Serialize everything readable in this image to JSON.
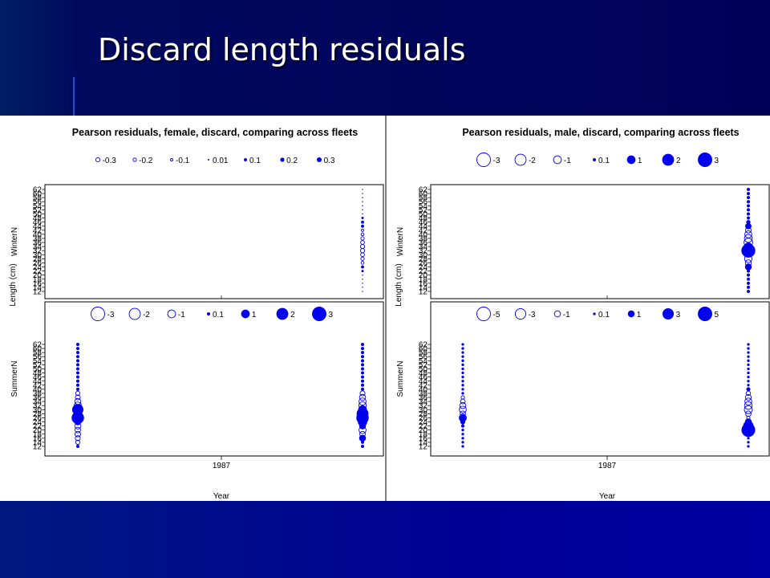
{
  "slide": {
    "title": "Discard length residuals"
  },
  "colors": {
    "bubble": "#0000ee",
    "axis": "#000000",
    "slide_bg": "#00007a"
  },
  "figure": {
    "xlabel": "Year",
    "ylabel": "Length (cm)",
    "xtick": "1987"
  },
  "chart_data": [
    {
      "type": "scatter",
      "title": "Pearson residuals, female, discard, comparing across fleets",
      "panel": "WinterN",
      "xlabel": "Year",
      "ylabel": "Length (cm)",
      "y_ticks": [
        12,
        14,
        16,
        18,
        20,
        22,
        24,
        26,
        28,
        30,
        32,
        34,
        36,
        38,
        40,
        42,
        44,
        46,
        48,
        50,
        52,
        54,
        56,
        58,
        60,
        62
      ],
      "ylim": [
        12,
        62
      ],
      "legend": {
        "labels": [
          "-0.3",
          "-0.2",
          "-0.1",
          "0.01",
          "0.1",
          "0.2",
          "0.3"
        ],
        "values": [
          -0.3,
          -0.2,
          -0.1,
          0.01,
          0.1,
          0.2,
          0.3
        ],
        "placement": "top"
      },
      "series": [
        {
          "column": 2,
          "y": [
            12,
            14,
            16,
            18,
            20,
            22,
            24,
            26,
            28,
            30,
            32,
            34,
            36,
            38,
            40,
            42,
            44,
            46,
            48,
            50,
            52,
            54,
            56,
            58,
            60,
            62
          ],
          "values": [
            0.01,
            0.01,
            0.01,
            0.01,
            0.01,
            0.05,
            0.1,
            -0.15,
            -0.2,
            -0.25,
            -0.3,
            -0.3,
            -0.25,
            -0.2,
            -0.15,
            -0.1,
            0.1,
            0.1,
            0.05,
            0.01,
            0.01,
            0.01,
            0.01,
            0.01,
            0.01,
            0.01
          ]
        }
      ]
    },
    {
      "type": "scatter",
      "panel": "SummerN",
      "xlabel": "Year",
      "ylabel": "Length (cm)",
      "x_ticks": [
        "1987"
      ],
      "y_ticks": [
        12,
        14,
        16,
        18,
        20,
        22,
        24,
        26,
        28,
        30,
        32,
        34,
        36,
        38,
        40,
        42,
        44,
        46,
        48,
        50,
        52,
        54,
        56,
        58,
        60,
        62
      ],
      "ylim": [
        12,
        62
      ],
      "legend": {
        "labels": [
          "-3",
          "-2",
          "-1",
          "0.1",
          "1",
          "2",
          "3"
        ],
        "values": [
          -3,
          -2,
          -1,
          0.1,
          1,
          2,
          3
        ],
        "placement": "top"
      },
      "series": [
        {
          "column": 1,
          "y": [
            12,
            14,
            16,
            18,
            20,
            22,
            24,
            26,
            28,
            30,
            32,
            34,
            36,
            38,
            40,
            42,
            44,
            46,
            48,
            50,
            52,
            54,
            56,
            58,
            60,
            62
          ],
          "values": [
            0.1,
            -0.3,
            -0.4,
            -0.5,
            -0.5,
            -0.6,
            0.6,
            2.2,
            0.8,
            1.8,
            -0.8,
            -0.6,
            -0.4,
            -0.3,
            0.1,
            0.1,
            0.1,
            0.1,
            0.1,
            0.1,
            0.1,
            0.1,
            0.1,
            0.1,
            0.1,
            0.1
          ]
        },
        {
          "column": 2,
          "y": [
            12,
            14,
            16,
            18,
            20,
            22,
            24,
            26,
            28,
            30,
            32,
            34,
            36,
            38,
            40,
            42,
            44,
            46,
            48,
            50,
            52,
            54,
            56,
            58,
            60,
            62
          ],
          "values": [
            0.1,
            0.1,
            0.6,
            -0.5,
            -0.8,
            0.6,
            1.2,
            2.2,
            2.0,
            1.0,
            -0.9,
            -0.8,
            -0.6,
            -0.4,
            0.1,
            0.1,
            0.1,
            0.1,
            0.1,
            0.1,
            0.1,
            0.1,
            0.1,
            0.1,
            0.1,
            0.1
          ]
        }
      ]
    },
    {
      "type": "scatter",
      "title": "Pearson residuals, male, discard, comparing across fleets",
      "panel": "WinterN",
      "xlabel": "Year",
      "ylabel": "Length (cm)",
      "y_ticks": [
        12,
        14,
        16,
        18,
        20,
        22,
        24,
        26,
        28,
        30,
        32,
        34,
        36,
        38,
        40,
        42,
        44,
        46,
        48,
        50,
        52,
        54,
        56,
        58,
        60,
        62
      ],
      "ylim": [
        12,
        62
      ],
      "legend": {
        "labels": [
          "-3",
          "-2",
          "-1",
          "0.1",
          "1",
          "2",
          "3"
        ],
        "values": [
          -3,
          -2,
          -1,
          0.1,
          1,
          2,
          3
        ],
        "placement": "top"
      },
      "series": [
        {
          "column": 2,
          "y": [
            12,
            14,
            16,
            18,
            20,
            22,
            24,
            26,
            28,
            30,
            32,
            34,
            36,
            38,
            40,
            42,
            44,
            46,
            48,
            50,
            52,
            54,
            56,
            58,
            60,
            62
          ],
          "values": [
            0.1,
            0.1,
            0.1,
            0.1,
            0.1,
            0.1,
            0.6,
            -0.6,
            -0.9,
            -0.3,
            2.8,
            0.9,
            -1.2,
            -1.0,
            -0.8,
            -0.5,
            0.5,
            0.2,
            0.1,
            0.1,
            0.1,
            0.1,
            0.1,
            0.1,
            0.1,
            0.1
          ]
        }
      ]
    },
    {
      "type": "scatter",
      "panel": "SummerN",
      "xlabel": "Year",
      "ylabel": "Length (cm)",
      "x_ticks": [
        "1987"
      ],
      "y_ticks": [
        12,
        14,
        16,
        18,
        20,
        22,
        24,
        26,
        28,
        30,
        32,
        34,
        36,
        38,
        40,
        42,
        44,
        46,
        48,
        50,
        52,
        54,
        56,
        58,
        60,
        62
      ],
      "ylim": [
        12,
        62
      ],
      "legend": {
        "labels": [
          "-5",
          "-3",
          "-1",
          "0.1",
          "1",
          "3",
          "5"
        ],
        "values": [
          -5,
          -3,
          -1,
          0.1,
          1,
          3,
          5
        ],
        "placement": "top"
      },
      "series": [
        {
          "column": 1,
          "y": [
            12,
            14,
            16,
            18,
            20,
            22,
            24,
            26,
            28,
            30,
            32,
            34,
            36,
            38,
            40,
            42,
            44,
            46,
            48,
            50,
            52,
            54,
            56,
            58,
            60,
            62
          ],
          "values": [
            0.1,
            0.1,
            0.1,
            0.1,
            0.1,
            0.2,
            0.5,
            1.4,
            -0.8,
            -1.3,
            -1.0,
            -0.6,
            -0.3,
            0.1,
            0.1,
            0.1,
            0.1,
            0.1,
            0.1,
            0.1,
            0.1,
            0.1,
            0.1,
            0.1,
            0.1,
            0.1
          ]
        },
        {
          "column": 2,
          "y": [
            12,
            14,
            16,
            18,
            20,
            22,
            24,
            26,
            28,
            30,
            32,
            34,
            36,
            38,
            40,
            42,
            44,
            46,
            48,
            50,
            52,
            54,
            56,
            58,
            60,
            62
          ],
          "values": [
            0.1,
            0.1,
            0.1,
            0.5,
            4.5,
            2.5,
            1.0,
            -0.3,
            -0.8,
            -1.7,
            -1.6,
            -1.3,
            -0.9,
            -0.5,
            0.3,
            0.1,
            0.1,
            0.1,
            0.1,
            0.1,
            0.1,
            0.1,
            0.1,
            0.1,
            0.1,
            0.1
          ]
        }
      ]
    }
  ]
}
